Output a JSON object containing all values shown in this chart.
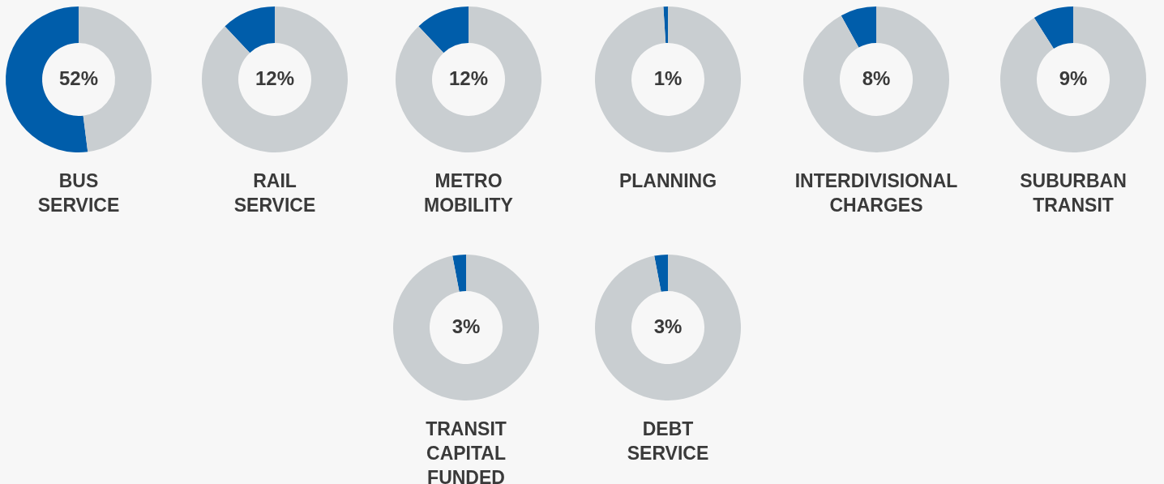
{
  "chart_data": [
    {
      "type": "donut",
      "title": "BUS SERVICE",
      "categories": [
        null,
        null
      ],
      "values": [
        52,
        48
      ],
      "colors": [
        "#005daa",
        "#c9ced1"
      ],
      "annotations": [
        "52%"
      ]
    },
    {
      "type": "donut",
      "title": "RAIL SERVICE",
      "categories": [
        null,
        null
      ],
      "values": [
        12,
        88
      ],
      "colors": [
        "#005daa",
        "#c9ced1"
      ],
      "annotations": [
        "12%"
      ]
    },
    {
      "type": "donut",
      "title": "METRO MOBILITY",
      "categories": [
        null,
        null
      ],
      "values": [
        12,
        88
      ],
      "colors": [
        "#005daa",
        "#c9ced1"
      ],
      "annotations": [
        "12%"
      ]
    },
    {
      "type": "donut",
      "title": "PLANNING",
      "categories": [
        null,
        null
      ],
      "values": [
        1,
        99
      ],
      "colors": [
        "#005daa",
        "#c9ced1"
      ],
      "annotations": [
        "1%"
      ]
    },
    {
      "type": "donut",
      "title": "INTERDIVISIONAL CHARGES",
      "categories": [
        null,
        null
      ],
      "values": [
        8,
        92
      ],
      "colors": [
        "#005daa",
        "#c9ced1"
      ],
      "annotations": [
        "8%"
      ]
    },
    {
      "type": "donut",
      "title": "SUBURBAN TRANSIT",
      "categories": [
        null,
        null
      ],
      "values": [
        9,
        91
      ],
      "colors": [
        "#005daa",
        "#c9ced1"
      ],
      "annotations": [
        "9%"
      ]
    },
    {
      "type": "donut",
      "title": "TRANSIT CAPITAL FUNDED",
      "categories": [
        null,
        null
      ],
      "values": [
        3,
        97
      ],
      "colors": [
        "#005daa",
        "#c9ced1"
      ],
      "annotations": [
        "3%"
      ]
    },
    {
      "type": "donut",
      "title": "DEBT SERVICE",
      "categories": [
        null,
        null
      ],
      "values": [
        3,
        97
      ],
      "colors": [
        "#005daa",
        "#c9ced1"
      ],
      "annotations": [
        "3%"
      ]
    }
  ]
}
